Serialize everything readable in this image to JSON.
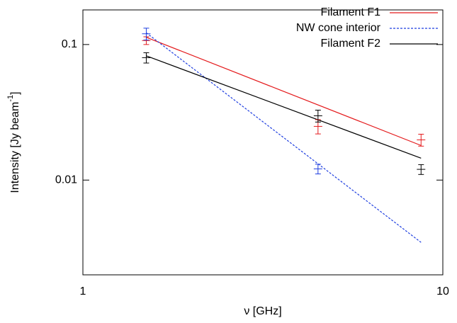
{
  "chart_data": {
    "type": "line",
    "xlabel": "ν [GHz]",
    "ylabel": {
      "text": "Intensity [Jy beam",
      "sup": "-1",
      "end": "]"
    },
    "xlog": true,
    "ylog": true,
    "xlim": [
      1,
      10
    ],
    "ylim": [
      0.002,
      0.18
    ],
    "xticks": [
      1,
      10
    ],
    "yticks": [
      0.01,
      0.1
    ],
    "legend": "top-right",
    "series": [
      {
        "name": "Filament F1",
        "color": "#e41a1c",
        "dashed": false,
        "x": [
          1.5,
          8.7
        ],
        "values": [
          0.113,
          0.018
        ]
      },
      {
        "name": "NW cone interior",
        "color": "#1f3fe0",
        "dashed": true,
        "x": [
          1.5,
          8.7
        ],
        "values": [
          0.122,
          0.00347
        ]
      },
      {
        "name": "Filament F2",
        "color": "#000000",
        "dashed": false,
        "x": [
          1.5,
          8.7
        ],
        "values": [
          0.0825,
          0.0145
        ]
      }
    ],
    "points": [
      {
        "color": "#e41a1c",
        "x": [
          1.5,
          4.5,
          8.7
        ],
        "values": [
          0.107,
          0.0249,
          0.0198
        ],
        "errors": [
          0.007,
          0.003,
          0.002
        ]
      },
      {
        "color": "#1f3fe0",
        "x": [
          1.5,
          4.5
        ],
        "values": [
          0.12,
          0.0121
        ],
        "errors": [
          0.012,
          0.001
        ]
      },
      {
        "color": "#000000",
        "x": [
          1.5,
          4.5,
          8.7
        ],
        "values": [
          0.08,
          0.0298,
          0.012
        ],
        "errors": [
          0.007,
          0.003,
          0.001
        ]
      }
    ]
  }
}
